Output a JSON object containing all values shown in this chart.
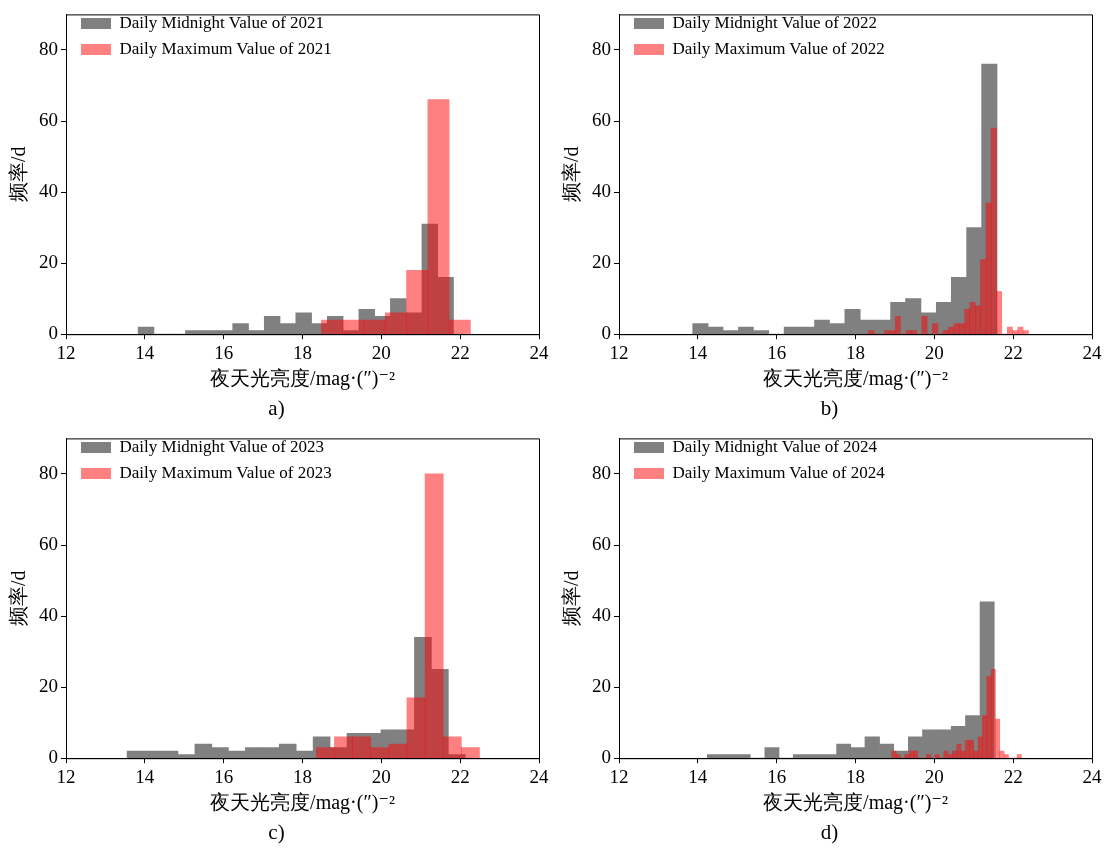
{
  "chart_data": [
    {
      "type": "histogram",
      "xlabel": "夜天光亮度/mag·(″)⁻²",
      "ylabel": "频率/d",
      "annotations": [
        "a)"
      ],
      "bins": [
        13.83,
        14.23,
        14.63,
        15.03,
        15.43,
        15.83,
        16.23,
        16.63,
        17.03,
        17.43,
        17.83,
        18.23,
        18.63,
        19.03,
        19.43,
        19.83,
        20.23,
        20.63,
        21.03,
        21.43,
        21.83
      ],
      "legend": "top left",
      "xlim": [
        12,
        24
      ],
      "xticks": [
        12,
        14,
        16,
        18,
        20,
        22,
        24
      ],
      "ylim": [
        0,
        90
      ],
      "yticks": [
        0,
        20,
        40,
        60,
        80
      ],
      "series": [
        {
          "name": "Daily Midnight Value of 2021",
          "color": "#808080",
          "values": [
            2,
            0,
            0,
            1,
            1,
            1,
            3,
            1,
            5,
            3,
            6,
            3,
            5,
            1,
            7,
            5,
            10,
            6,
            31,
            16
          ]
        },
        {
          "name": "Daily Maximum Value of 2021",
          "color": "#ff8080",
          "bins": [
            18.48,
            19.02,
            19.56,
            20.1,
            20.64,
            21.18,
            21.72,
            22.26
          ],
          "values": [
            4,
            4,
            4,
            6,
            18,
            66,
            4
          ]
        }
      ]
    },
    {
      "type": "histogram",
      "xlabel": "夜天光亮度/mag·(″)⁻²",
      "ylabel": "频率/d",
      "annotations": [
        "b)"
      ],
      "bins": [
        13.87,
        14.26,
        14.64,
        15.03,
        15.41,
        15.8,
        16.19,
        16.57,
        16.96,
        17.34,
        17.73,
        18.12,
        18.5,
        18.89,
        19.27,
        19.66,
        20.05,
        20.43,
        20.82,
        21.2,
        21.59
      ],
      "legend": "top left",
      "xlim": [
        12,
        24
      ],
      "xticks": [
        12,
        14,
        16,
        18,
        20,
        22,
        24
      ],
      "ylim": [
        0,
        90
      ],
      "yticks": [
        0,
        20,
        40,
        60,
        80
      ],
      "series": [
        {
          "name": "Daily Midnight Value of 2022",
          "color": "#808080",
          "values": [
            3,
            2,
            1,
            2,
            1,
            0,
            2,
            2,
            4,
            3,
            7,
            4,
            4,
            9,
            10,
            6,
            9,
            16,
            30,
            76
          ]
        },
        {
          "name": "Daily Maximum Value of 2022",
          "color": "#ff8080",
          "bins": [
            18.33,
            18.47,
            18.6,
            18.74,
            18.87,
            19.01,
            19.14,
            19.28,
            19.41,
            19.55,
            19.68,
            19.82,
            19.95,
            20.09,
            20.22,
            20.36,
            20.5,
            20.63,
            20.77,
            20.9,
            21.04,
            21.17,
            21.31,
            21.44,
            21.58,
            21.71,
            21.85,
            21.98,
            22.12,
            22.25,
            22.39
          ],
          "values": [
            1,
            0,
            0,
            1,
            1,
            5,
            0,
            1,
            1,
            0,
            5,
            0,
            3,
            0,
            1,
            2,
            3,
            3,
            7,
            9,
            8,
            21,
            37,
            58,
            12,
            0,
            2,
            1,
            2,
            1
          ]
        }
      ]
    },
    {
      "type": "histogram",
      "xlabel": "夜天光亮度/mag·(″)⁻²",
      "ylabel": "频率/d",
      "annotations": [
        "c)"
      ],
      "bins": [
        13.55,
        13.98,
        14.41,
        14.84,
        15.27,
        15.7,
        16.12,
        16.55,
        16.98,
        17.41,
        17.84,
        18.27,
        18.7,
        19.13,
        19.56,
        19.99,
        20.41,
        20.84,
        21.27,
        21.7,
        22.13
      ],
      "legend": "top left",
      "xlim": [
        12,
        24
      ],
      "xticks": [
        12,
        14,
        16,
        18,
        20,
        22,
        24
      ],
      "ylim": [
        0,
        90
      ],
      "yticks": [
        0,
        20,
        40,
        60,
        80
      ],
      "series": [
        {
          "name": "Daily Midnight Value of 2023",
          "color": "#808080",
          "values": [
            2,
            2,
            2,
            1,
            4,
            3,
            2,
            3,
            3,
            4,
            2,
            6,
            3,
            7,
            7,
            8,
            8,
            34,
            25,
            1
          ]
        },
        {
          "name": "Daily Maximum Value of 2023",
          "color": "#ff8080",
          "bins": [
            18.35,
            18.81,
            19.27,
            19.73,
            20.19,
            20.65,
            21.11,
            21.57,
            22.03,
            22.49
          ],
          "values": [
            3,
            6,
            6,
            3,
            4,
            17,
            80,
            6,
            3
          ]
        }
      ]
    },
    {
      "type": "histogram",
      "xlabel": "夜天光亮度/mag·(″)⁻²",
      "ylabel": "频率/d",
      "annotations": [
        "d)"
      ],
      "bins": [
        14.24,
        14.6,
        14.97,
        15.33,
        15.7,
        16.06,
        16.42,
        16.79,
        17.15,
        17.52,
        17.88,
        18.24,
        18.61,
        18.97,
        19.34,
        19.7,
        20.06,
        20.43,
        20.79,
        21.16,
        21.52
      ],
      "legend": "top left",
      "xlim": [
        12,
        24
      ],
      "xticks": [
        12,
        14,
        16,
        18,
        20,
        22,
        24
      ],
      "ylim": [
        0,
        90
      ],
      "yticks": [
        0,
        20,
        40,
        60,
        80
      ],
      "series": [
        {
          "name": "Daily Midnight Value of 2024",
          "color": "#808080",
          "values": [
            1,
            1,
            1,
            0,
            3,
            0,
            1,
            1,
            1,
            4,
            3,
            6,
            4,
            2,
            6,
            8,
            8,
            9,
            12,
            44
          ]
        },
        {
          "name": "Daily Maximum Value of 2024",
          "color": "#ff8080",
          "bins": [
            18.92,
            19.03,
            19.14,
            19.25,
            19.36,
            19.47,
            19.58,
            19.69,
            19.8,
            19.91,
            20.02,
            20.13,
            20.24,
            20.35,
            20.46,
            20.57,
            20.68,
            20.78,
            20.89,
            21.0,
            21.11,
            21.22,
            21.33,
            21.44,
            21.55,
            21.66,
            21.77,
            21.88,
            21.99,
            22.1,
            22.21
          ],
          "values": [
            2,
            1,
            0,
            1,
            2,
            2,
            0,
            0,
            1,
            0,
            1,
            0,
            2,
            1,
            2,
            4,
            2,
            5,
            5,
            2,
            6,
            12,
            23,
            25,
            11,
            2,
            1,
            0,
            0,
            1
          ]
        }
      ]
    }
  ]
}
